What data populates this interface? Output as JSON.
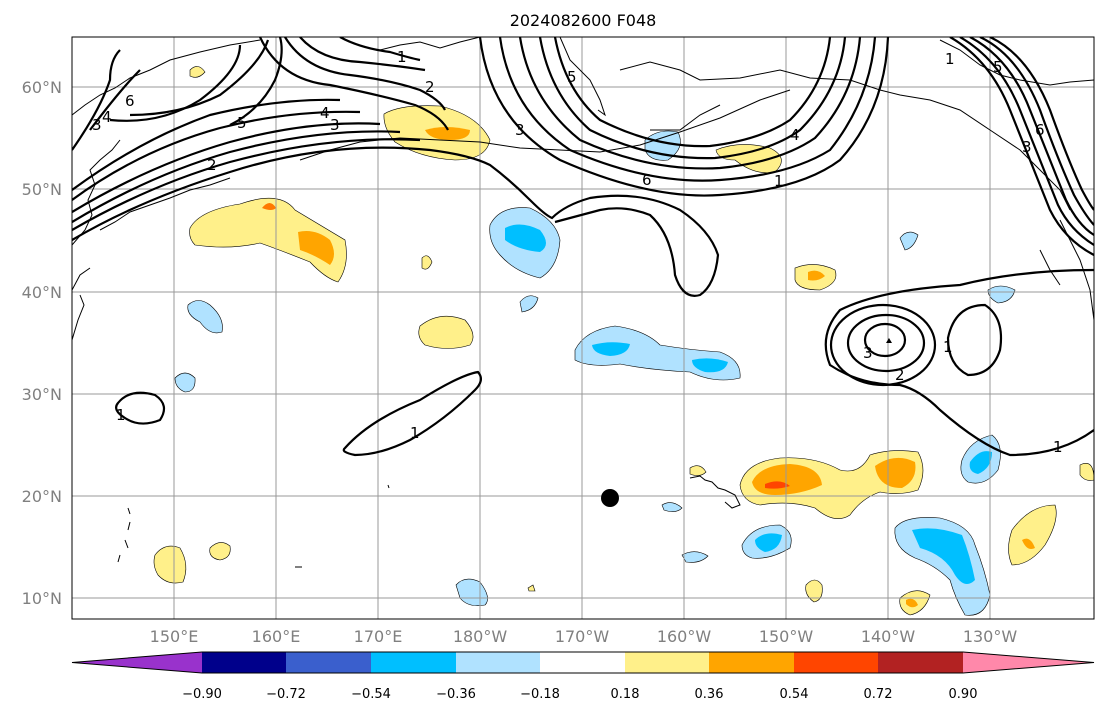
{
  "title": "2024082600 F048",
  "lat_labels": [
    "60°N",
    "50°N",
    "40°N",
    "30°N",
    "20°N",
    "10°N"
  ],
  "lon_labels": [
    "150°E",
    "160°E",
    "170°E",
    "180°W",
    "170°W",
    "160°W",
    "150°W",
    "140°W",
    "130°W"
  ],
  "colorbar": {
    "ticks": [
      "−0.90",
      "−0.72",
      "−0.54",
      "−0.36",
      "−0.18",
      "0.18",
      "0.36",
      "0.54",
      "0.72",
      "0.90"
    ],
    "colors": [
      "#9932cc",
      "#00008b",
      "#3a5fcd",
      "#00bfff",
      "#b0e2ff",
      "#ffffff",
      "#fff08a",
      "#ffa500",
      "#ff4500",
      "#b22222",
      "#ff88aa"
    ]
  },
  "contour_labels": [
    "1",
    "2",
    "3",
    "4",
    "5",
    "6"
  ],
  "marker": "storm-center-dot"
}
